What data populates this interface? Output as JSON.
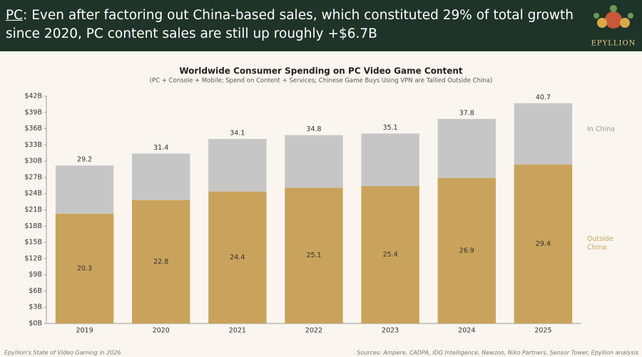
{
  "header": {
    "title_prefix": "PC",
    "title_rest": ": Even after factoring out China-based sales, which constituted 29% of total growth since 2020, PC content sales are still up roughly +$6.7B",
    "logo": "EPYLLION"
  },
  "chart_data": {
    "type": "stacked_bar",
    "title": "Worldwide Consumer Spending on PC Video Game Content",
    "subtitle": "(PC + Console + Mobile; Spend on Content + Services; Chinese Game Buys Using VPN are Tallied Outside China)",
    "categories": [
      "2019",
      "2020",
      "2021",
      "2022",
      "2023",
      "2024",
      "2025"
    ],
    "series": [
      {
        "name": "Outside China",
        "color": "#c9a35c",
        "values": [
          20.3,
          22.8,
          24.4,
          25.1,
          25.4,
          26.9,
          29.4
        ]
      },
      {
        "name": "In China",
        "color": "#c6c6c6",
        "values": [
          8.9,
          8.6,
          9.7,
          9.7,
          9.7,
          10.9,
          11.3
        ]
      }
    ],
    "totals": [
      29.2,
      31.4,
      34.1,
      34.8,
      35.1,
      37.8,
      40.7
    ],
    "ylim": [
      0,
      42
    ],
    "yticks": [
      {
        "value": 0,
        "label": "$0B"
      },
      {
        "value": 3,
        "label": "$3B"
      },
      {
        "value": 6,
        "label": "$6B"
      },
      {
        "value": 9,
        "label": "$9B"
      },
      {
        "value": 12,
        "label": "$12B"
      },
      {
        "value": 15,
        "label": "$15B"
      },
      {
        "value": 18,
        "label": "$18B"
      },
      {
        "value": 21,
        "label": "$21B"
      },
      {
        "value": 24,
        "label": "$24B"
      },
      {
        "value": 27,
        "label": "$27B"
      },
      {
        "value": 30,
        "label": "$30B"
      },
      {
        "value": 33,
        "label": "$33B"
      },
      {
        "value": 36,
        "label": "$36B"
      },
      {
        "value": 39,
        "label": "$39B"
      },
      {
        "value": 42,
        "label": "$42B"
      }
    ],
    "grid": false
  },
  "footer": {
    "left": "Epyllion's State of Video Gaming in 2026",
    "right": "Sources: Ampere, CADPA, IDG Intelligence, Newzoo, Niko Partners, Sensor Tower, Epyllion analysis"
  }
}
